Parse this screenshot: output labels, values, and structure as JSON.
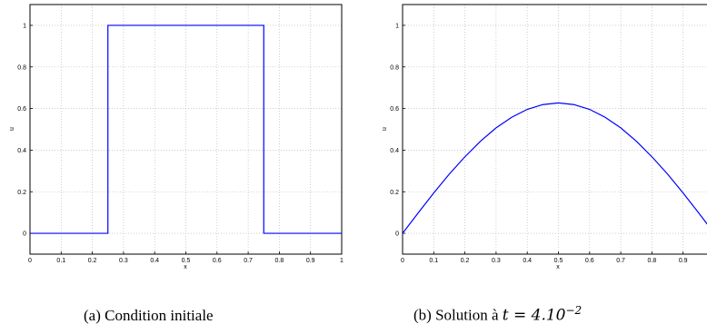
{
  "chart_data": [
    {
      "type": "line",
      "xlabel": "x",
      "ylabel": "u",
      "xlim": [
        0,
        1
      ],
      "ylim": [
        -0.1,
        1.1
      ],
      "xticks": [
        0,
        0.1,
        0.2,
        0.3,
        0.4,
        0.5,
        0.6,
        0.7,
        0.8,
        0.9,
        1
      ],
      "xtick_labels": [
        "0",
        "0.1",
        "0.2",
        "0.3",
        "0.4",
        "0.5",
        "0.6",
        "0.7",
        "0.8",
        "0.9",
        "1"
      ],
      "yticks": [
        0,
        0.2,
        0.4,
        0.6,
        0.8,
        1
      ],
      "ytick_labels": [
        "0",
        "0.2",
        "0.4",
        "0.6",
        "0.8",
        "1"
      ],
      "grid": true,
      "line_color": "#0000ff",
      "series": [
        {
          "x": [
            0,
            0.25,
            0.25,
            0.75,
            0.75,
            1
          ],
          "y": [
            0,
            0,
            1,
            1,
            0,
            0
          ]
        }
      ],
      "caption": "(a) Condition initiale"
    },
    {
      "type": "line",
      "xlabel": "x",
      "ylabel": "u",
      "xlim": [
        0,
        1
      ],
      "ylim": [
        -0.1,
        1.1
      ],
      "xticks": [
        0,
        0.1,
        0.2,
        0.3,
        0.4,
        0.5,
        0.6,
        0.7,
        0.8,
        0.9
      ],
      "xtick_labels": [
        "0",
        "0.1",
        "0.2",
        "0.3",
        "0.4",
        "0.5",
        "0.6",
        "0.7",
        "0.8",
        "0.9"
      ],
      "yticks": [
        0,
        0.2,
        0.4,
        0.6,
        0.8,
        1
      ],
      "ytick_labels": [
        "0",
        "0.2",
        "0.4",
        "0.6",
        "0.8",
        "1"
      ],
      "grid": true,
      "line_color": "#0000ff",
      "series": [
        {
          "x": [
            0,
            0.05,
            0.1,
            0.15,
            0.2,
            0.25,
            0.3,
            0.35,
            0.4,
            0.45,
            0.5,
            0.55,
            0.6,
            0.65,
            0.7,
            0.75,
            0.8,
            0.85,
            0.9,
            0.95,
            1
          ],
          "y": [
            0,
            0.098,
            0.194,
            0.285,
            0.368,
            0.443,
            0.507,
            0.558,
            0.596,
            0.619,
            0.627,
            0.619,
            0.596,
            0.558,
            0.507,
            0.443,
            0.368,
            0.285,
            0.194,
            0.098,
            0
          ]
        }
      ],
      "caption_prefix": "(b) Solution à ",
      "caption_math": "t = 4.10",
      "caption_exp": "−2"
    }
  ]
}
